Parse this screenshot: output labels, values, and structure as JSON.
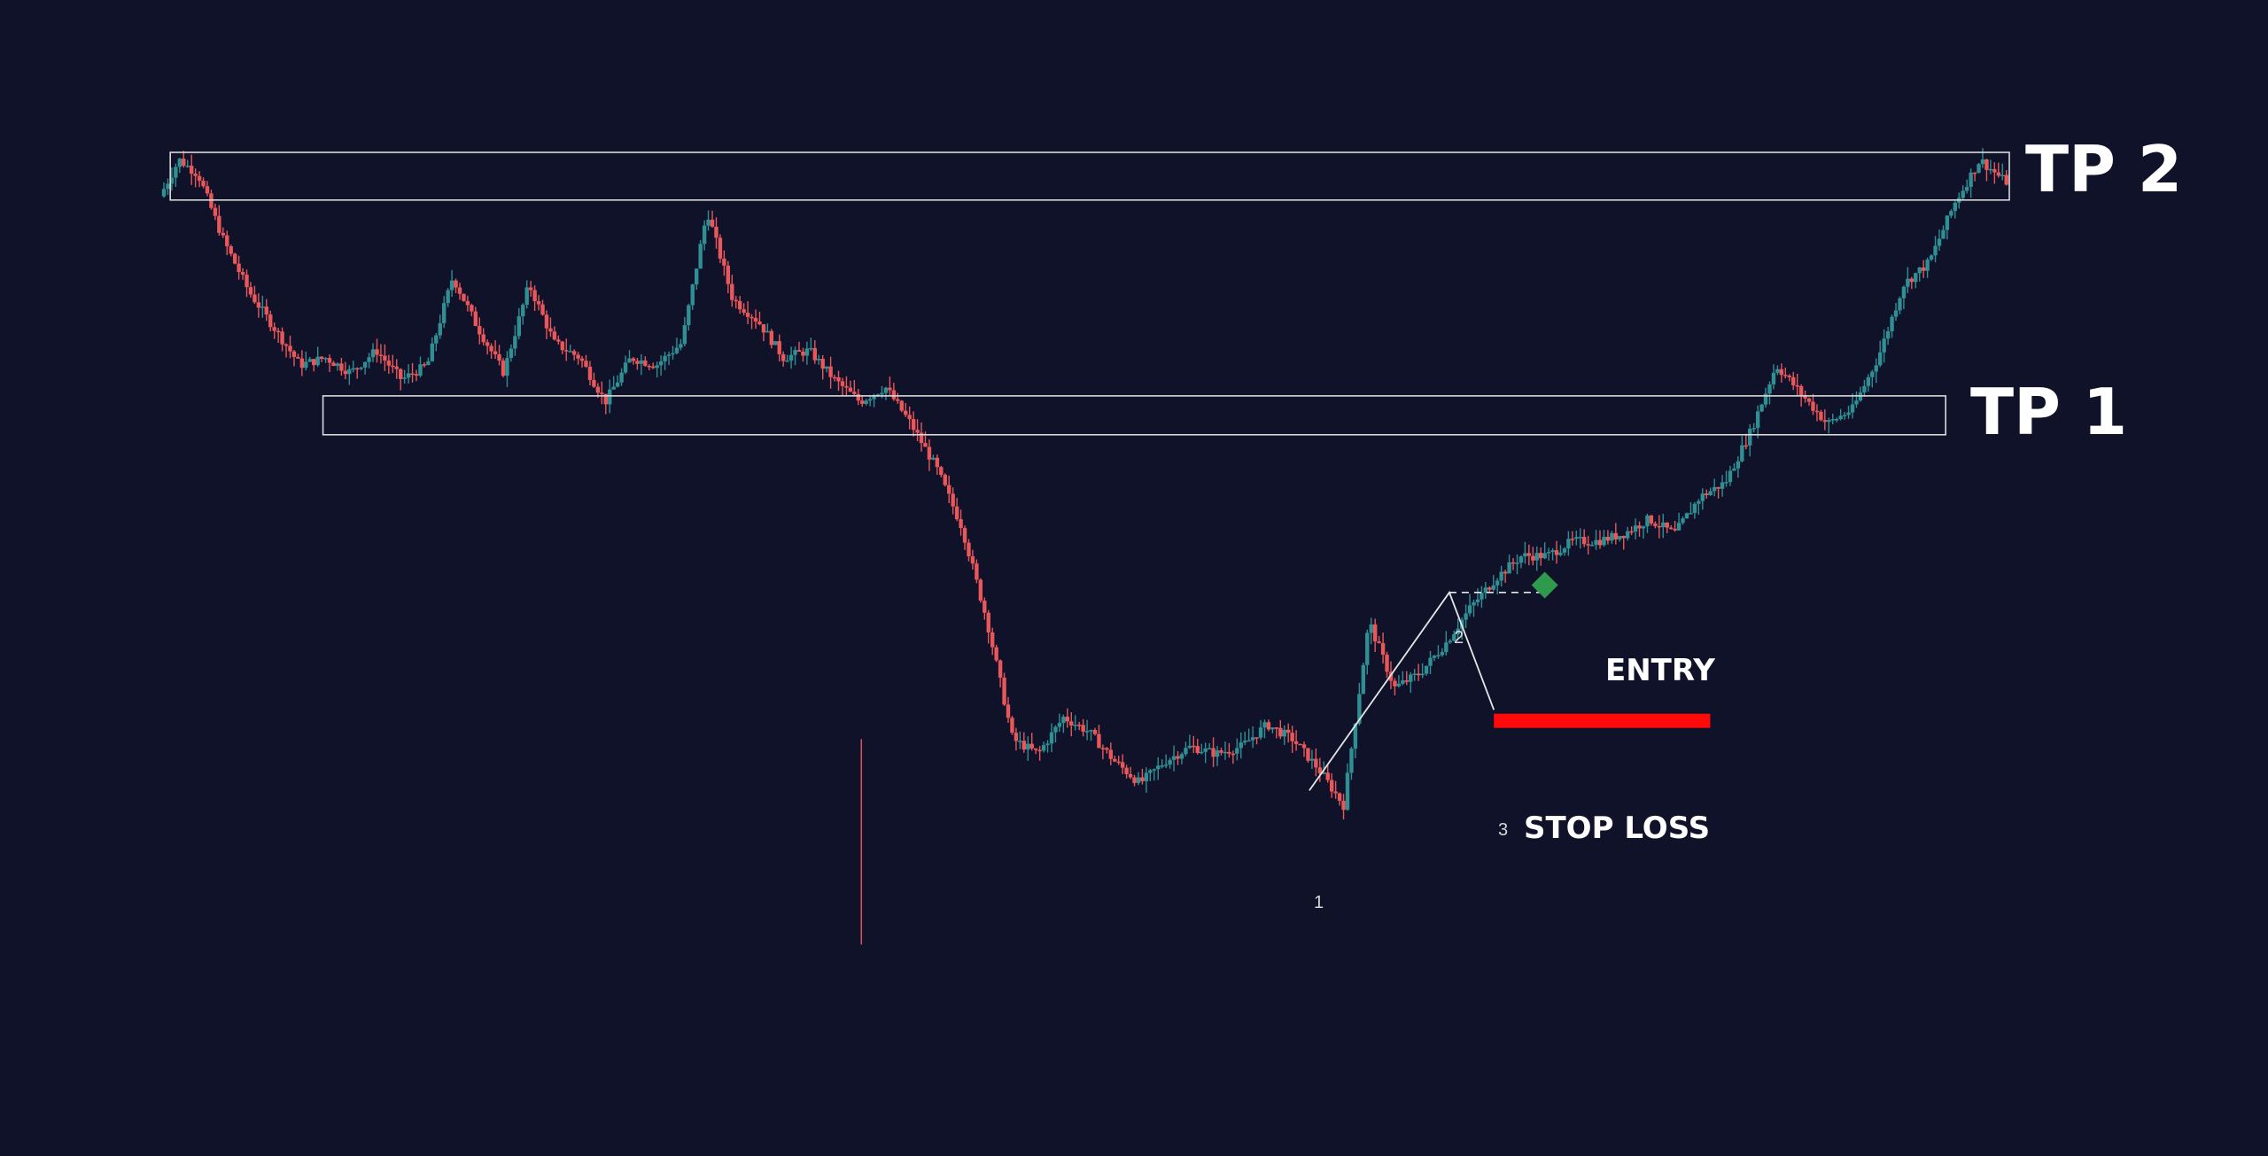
{
  "colors": {
    "background": "#10122a",
    "up": "#2f8f93",
    "down": "#e8585a",
    "zone_stroke": "#d9d9d9",
    "stop_loss": "#ff0a0a",
    "entry_marker": "#2e9a4c",
    "text": "#ffffff"
  },
  "labels": {
    "tp2": "TP 2",
    "tp1": "TP 1",
    "entry": "ENTRY",
    "stop_loss": "STOP LOSS",
    "point1": "1",
    "point2": "2",
    "point3": "3"
  },
  "chart_data": {
    "type": "line",
    "title": "",
    "xlabel": "",
    "ylabel": "",
    "grid": false,
    "xlim": [
      0,
      290
    ],
    "ylim": [
      0,
      100
    ],
    "series": [
      {
        "x": [
          0,
          3,
          6,
          10,
          14,
          18,
          22,
          26,
          30,
          34,
          38,
          42,
          46,
          50,
          54,
          58,
          62,
          66,
          70,
          74,
          78,
          82,
          86,
          90,
          94,
          98,
          102,
          106,
          110,
          114,
          118,
          122,
          126,
          130,
          134,
          138,
          142,
          146,
          150,
          154,
          158,
          162,
          166,
          170,
          174,
          178,
          182,
          186,
          190,
          194,
          198,
          202,
          206,
          210,
          214,
          218,
          222,
          226,
          230,
          234,
          238,
          242,
          246,
          250,
          254,
          258,
          262,
          266,
          270,
          274,
          278,
          282,
          286,
          290
        ],
        "values": [
          94,
          99,
          97,
          88,
          81,
          76,
          71,
          72,
          70,
          73,
          69,
          71,
          83,
          76,
          70,
          82,
          74,
          72,
          66,
          72,
          71,
          74,
          92,
          80,
          77,
          72,
          73,
          69,
          66,
          68,
          63,
          57,
          49,
          36,
          20,
          18,
          23,
          21,
          17,
          14,
          17,
          19,
          18,
          19,
          22,
          20,
          16,
          11,
          36,
          27,
          29,
          33,
          38,
          42,
          45,
          45,
          47,
          47,
          48,
          50,
          48,
          53,
          55,
          62,
          71,
          67,
          63,
          65,
          72,
          82,
          85,
          93,
          99,
          96
        ]
      }
    ],
    "zones": [
      {
        "name": "TP 2",
        "y_top": 100,
        "y_bottom": 93.5,
        "x_start": 1,
        "x_end": 290
      },
      {
        "name": "TP 1",
        "y_top": 66.8,
        "y_bottom": 61.5,
        "x_start": 25,
        "x_end": 280
      }
    ],
    "pattern_points": [
      {
        "label": "1",
        "x": 180,
        "y": 13
      },
      {
        "label": "2",
        "x": 202,
        "y": 40
      },
      {
        "label": "3",
        "x": 209,
        "y": 24
      }
    ],
    "entry": {
      "label": "ENTRY",
      "x": 217,
      "y": 41
    },
    "stop_loss": {
      "label": "STOP LOSS",
      "x_start": 209,
      "x_end": 243,
      "y": 22.5
    }
  }
}
